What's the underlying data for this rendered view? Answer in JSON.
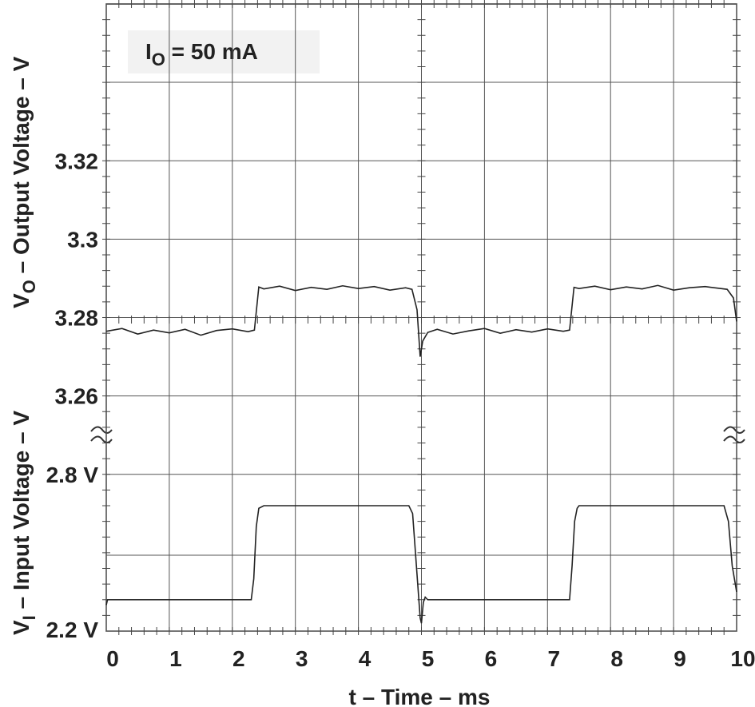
{
  "chart_data": {
    "type": "line",
    "xlabel": "t – Time – ms",
    "ylabel": {
      "main": "V",
      "sub": "O",
      "rest": " – Output Voltage – V"
    },
    "y2label": {
      "main": "V",
      "sub": "I",
      "rest": " – Input Voltage – V"
    },
    "annotation": {
      "main": "I",
      "sub": "O",
      "rest": " = 50 mA"
    },
    "xlim": [
      0,
      10
    ],
    "xticks": [
      0,
      1,
      2,
      3,
      4,
      5,
      6,
      7,
      8,
      9,
      10
    ],
    "ylim": [
      3.2,
      3.36
    ],
    "yticks": [
      3.32,
      3.3,
      3.28,
      3.26
    ],
    "y2lim": [
      2.2,
      4.6
    ],
    "y2ticks": [
      {
        "value": 2.8,
        "label": "2.8 V"
      },
      {
        "value": 2.2,
        "label": "2.2 V"
      }
    ],
    "grid": true,
    "series": [
      {
        "name": "VO",
        "color": "#222222",
        "x": [
          0,
          0.25,
          0.5,
          0.75,
          1,
          1.25,
          1.5,
          1.75,
          2,
          2.25,
          2.35,
          2.42,
          2.5,
          2.75,
          3,
          3.25,
          3.5,
          3.75,
          4,
          4.25,
          4.5,
          4.75,
          4.85,
          4.93,
          4.98,
          5.02,
          5.1,
          5.25,
          5.5,
          5.75,
          6,
          6.25,
          6.5,
          6.75,
          7,
          7.25,
          7.35,
          7.42,
          7.5,
          7.75,
          8,
          8.25,
          8.5,
          8.75,
          9,
          9.25,
          9.5,
          9.75,
          9.85,
          9.95,
          10
        ],
        "values": [
          3.2765,
          3.2772,
          3.2758,
          3.2768,
          3.2761,
          3.277,
          3.2755,
          3.2767,
          3.2771,
          3.2764,
          3.2768,
          3.2878,
          3.2873,
          3.288,
          3.2869,
          3.2877,
          3.2872,
          3.2881,
          3.2874,
          3.2879,
          3.287,
          3.2876,
          3.2872,
          3.282,
          3.27,
          3.274,
          3.2762,
          3.277,
          3.2758,
          3.2766,
          3.2772,
          3.276,
          3.2769,
          3.2763,
          3.2771,
          3.2765,
          3.2768,
          3.2877,
          3.2874,
          3.288,
          3.2871,
          3.2878,
          3.2873,
          3.2882,
          3.287,
          3.2876,
          3.2879,
          3.2874,
          3.2872,
          3.285,
          3.279
        ]
      },
      {
        "name": "VI",
        "color": "#222222",
        "axis": "y2",
        "x": [
          0,
          0.02,
          0.05,
          2.3,
          2.34,
          2.38,
          2.42,
          2.5,
          4.8,
          4.86,
          4.92,
          4.98,
          5.0,
          5.03,
          5.06,
          5.1,
          7.35,
          7.39,
          7.43,
          7.47,
          7.5,
          9.8,
          9.87,
          9.93,
          10
        ],
        "values": [
          2.3,
          2.32,
          2.32,
          2.32,
          2.4,
          2.6,
          2.67,
          2.68,
          2.68,
          2.65,
          2.45,
          2.25,
          2.23,
          2.31,
          2.33,
          2.32,
          2.32,
          2.45,
          2.62,
          2.67,
          2.68,
          2.68,
          2.62,
          2.45,
          2.35
        ]
      }
    ]
  }
}
